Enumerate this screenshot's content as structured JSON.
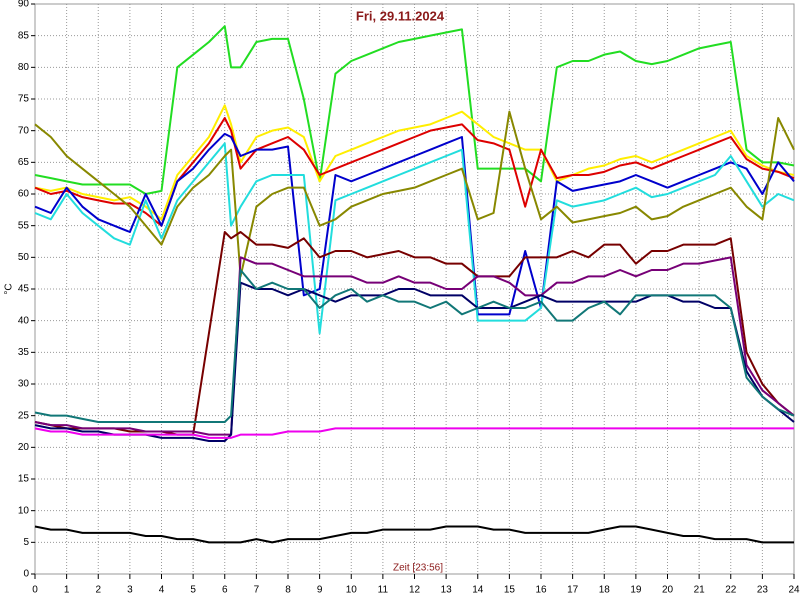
{
  "chart_data": {
    "type": "line",
    "title": "Fri, 29.11.2024",
    "x_label": "Zeit [23:56]",
    "y_label": "°C",
    "x": [
      0,
      0.5,
      1,
      1.5,
      2,
      2.5,
      3,
      3.5,
      4,
      4.5,
      5,
      5.5,
      6,
      6.2,
      6.5,
      7,
      7.5,
      8,
      8.5,
      9,
      9.5,
      10,
      10.5,
      11,
      11.5,
      12,
      12.5,
      13,
      13.5,
      14,
      14.5,
      15,
      15.5,
      16,
      16.5,
      17,
      17.5,
      18,
      18.5,
      19,
      19.5,
      20,
      20.5,
      21,
      21.5,
      22,
      22.5,
      23,
      23.5,
      24
    ],
    "xlim": [
      0,
      24
    ],
    "xticks": [
      0,
      1,
      2,
      3,
      4,
      5,
      6,
      7,
      8,
      9,
      10,
      11,
      12,
      13,
      14,
      15,
      16,
      17,
      18,
      19,
      20,
      21,
      22,
      23,
      24
    ],
    "ylim": [
      0,
      90
    ],
    "yticks": [
      0,
      5,
      10,
      15,
      20,
      25,
      30,
      35,
      40,
      45,
      50,
      55,
      60,
      65,
      70,
      75,
      80,
      85,
      90
    ],
    "grid": true,
    "series": [
      {
        "color": "#22dd22",
        "values": [
          63,
          62.5,
          62,
          61.5,
          61.5,
          61.5,
          61.5,
          60,
          60.5,
          80,
          82,
          84,
          86.5,
          80,
          80,
          84,
          84.5,
          84.5,
          75,
          62,
          79,
          81,
          82,
          83,
          84,
          84.5,
          85,
          85.5,
          86,
          64,
          64,
          64,
          64,
          62,
          80,
          81,
          81,
          82,
          82.5,
          81,
          80.5,
          81,
          82,
          83,
          83.5,
          84,
          67,
          65,
          65,
          64.5
        ]
      },
      {
        "color": "#ffee00",
        "values": [
          61,
          60.5,
          61,
          60,
          59.5,
          59,
          59.5,
          58,
          56,
          63,
          66,
          69,
          74,
          71,
          65,
          69,
          70,
          70.5,
          69,
          62,
          66,
          67,
          68,
          69,
          70,
          70.5,
          71,
          72,
          73,
          71,
          69,
          68,
          67,
          67,
          62,
          63,
          64,
          64.5,
          65.5,
          66,
          65,
          66,
          67,
          68,
          69,
          70,
          66,
          64.5,
          63.5,
          63
        ]
      },
      {
        "color": "#dd0000",
        "values": [
          61,
          60,
          60.5,
          59.5,
          59,
          58.5,
          58.5,
          57,
          55,
          62,
          65,
          68,
          72,
          70,
          64,
          67,
          68,
          69,
          67,
          63,
          64,
          65,
          66,
          67,
          68,
          69,
          70,
          70.5,
          71,
          68.5,
          68,
          67,
          58,
          67,
          62.5,
          63,
          63,
          63.5,
          64.5,
          65,
          64,
          65,
          66,
          67,
          68,
          69,
          65.5,
          64,
          63.5,
          62.5
        ]
      },
      {
        "color": "#0000cc",
        "values": [
          58,
          57,
          61,
          58,
          56,
          55,
          54,
          60,
          55,
          62,
          64,
          67,
          69.5,
          69,
          66,
          67,
          67,
          67.5,
          44,
          45,
          63,
          62,
          63,
          64,
          65,
          66,
          67,
          68,
          69,
          41,
          41,
          41,
          51,
          42,
          62,
          60.5,
          61,
          61.5,
          62,
          63,
          62,
          61,
          62,
          63,
          64,
          65,
          64,
          60,
          65,
          62
        ]
      },
      {
        "color": "#22dddd",
        "values": [
          57,
          56,
          60,
          57,
          55,
          53,
          52,
          59,
          53,
          59,
          62,
          65,
          68,
          55,
          58,
          62,
          63,
          63,
          63,
          38,
          59,
          60,
          61,
          62,
          63,
          64,
          65,
          66,
          67,
          40,
          40,
          40,
          40,
          42,
          59,
          58,
          58.5,
          59,
          60,
          61,
          59.5,
          60,
          61,
          62,
          63,
          66,
          62,
          58,
          60,
          59
        ]
      },
      {
        "color": "#888800",
        "values": [
          71,
          69,
          66,
          64,
          62,
          60,
          58,
          55,
          52,
          58,
          61,
          63,
          66,
          67,
          47,
          58,
          60,
          61,
          61,
          55,
          56,
          58,
          59,
          60,
          60.5,
          61,
          62,
          63,
          64,
          56,
          57,
          73,
          64,
          56,
          58,
          55.5,
          56,
          56.5,
          57,
          58,
          56,
          56.5,
          58,
          59,
          60,
          61,
          58,
          56,
          72,
          67
        ]
      },
      {
        "color": "#770000",
        "values": [
          24,
          23.5,
          23,
          23,
          23,
          23,
          22.5,
          22.5,
          22.5,
          22,
          22,
          38,
          54,
          53,
          54,
          52,
          52,
          51.5,
          53,
          50,
          51,
          51,
          50,
          50.5,
          51,
          50,
          50,
          49,
          49,
          47,
          47,
          47,
          50,
          50,
          50,
          51,
          50,
          52,
          52,
          49,
          51,
          51,
          52,
          52,
          52,
          53,
          35,
          30,
          27,
          25
        ]
      },
      {
        "color": "#770077",
        "values": [
          24,
          23.5,
          23.5,
          23,
          23,
          23,
          23,
          22.5,
          22.5,
          22.5,
          22.5,
          22,
          22,
          22,
          50,
          49,
          49,
          48,
          47,
          47,
          47,
          47,
          46,
          46,
          47,
          46,
          46,
          45,
          45,
          47,
          47,
          46,
          44,
          44,
          46,
          46,
          47,
          47,
          48,
          47,
          48,
          48,
          49,
          49,
          49.5,
          50,
          33,
          29,
          27,
          25
        ]
      },
      {
        "color": "#000066",
        "values": [
          23.5,
          23,
          23,
          22.5,
          22.5,
          22,
          22,
          22,
          21.5,
          21.5,
          21.5,
          21,
          21,
          22,
          46,
          45,
          45,
          44,
          45,
          44,
          43,
          44,
          44,
          44,
          45,
          45,
          44,
          44,
          44,
          42,
          42,
          42,
          43,
          44,
          43,
          43,
          43,
          43,
          43,
          43,
          44,
          44,
          43,
          43,
          42,
          42,
          32,
          28,
          26,
          24
        ]
      },
      {
        "color": "#117777",
        "values": [
          25.5,
          25,
          25,
          24.5,
          24,
          24,
          24,
          24,
          24,
          24,
          24,
          24,
          24,
          25,
          48,
          45,
          46,
          45,
          45,
          42,
          44,
          45,
          43,
          44,
          43,
          43,
          42,
          43,
          41,
          42,
          43,
          42,
          42,
          43,
          40,
          40,
          42,
          43,
          41,
          44,
          44,
          44,
          44,
          44,
          44,
          42,
          31,
          28,
          26,
          25
        ]
      },
      {
        "color": "#ee00ee",
        "values": [
          23,
          22.5,
          22.5,
          22,
          22,
          22,
          22,
          22,
          22,
          22,
          22,
          21.5,
          21.5,
          21.5,
          22,
          22,
          22,
          22.5,
          22.5,
          22.5,
          23,
          23,
          23,
          23,
          23,
          23,
          23,
          23,
          23,
          23,
          23,
          23,
          23,
          23,
          23,
          23,
          23,
          23,
          23,
          23,
          23,
          23,
          23,
          23,
          23,
          23,
          23,
          23,
          23,
          23
        ]
      },
      {
        "color": "#000000",
        "values": [
          7.5,
          7,
          7,
          6.5,
          6.5,
          6.5,
          6.5,
          6,
          6,
          5.5,
          5.5,
          5,
          5,
          5,
          5,
          5.5,
          5,
          5.5,
          5.5,
          5.5,
          6,
          6.5,
          6.5,
          7,
          7,
          7,
          7,
          7.5,
          7.5,
          7.5,
          7,
          7,
          6.5,
          6.5,
          6.5,
          6.5,
          6.5,
          7,
          7.5,
          7.5,
          7,
          6.5,
          6,
          6,
          5.5,
          5.5,
          5.5,
          5,
          5,
          5
        ]
      }
    ]
  }
}
